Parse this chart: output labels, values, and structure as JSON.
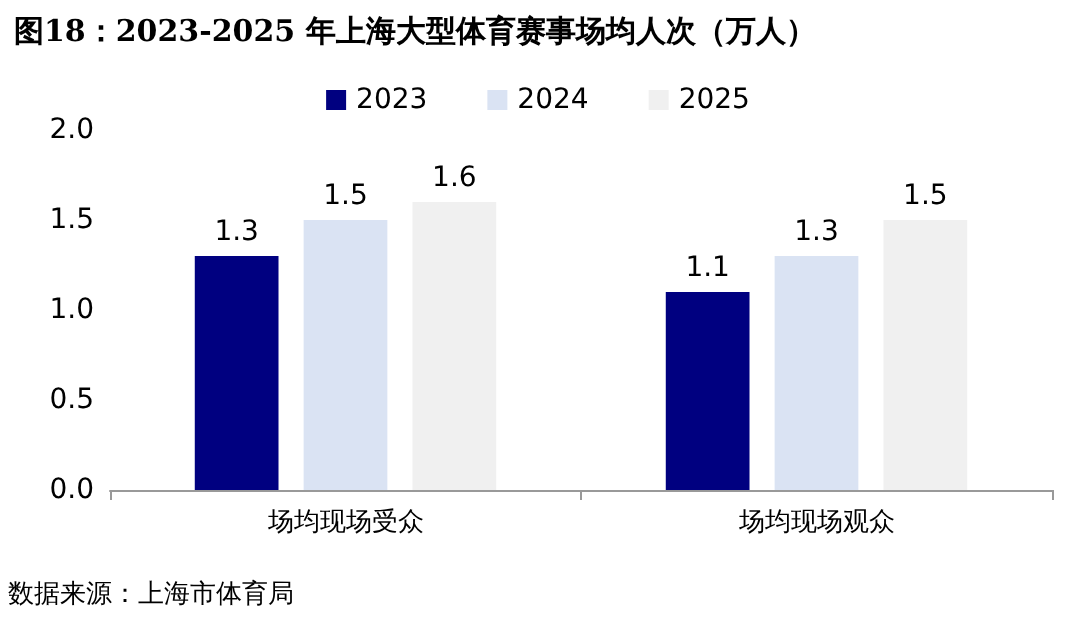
{
  "chart_data": {
    "type": "bar",
    "title": "图18：2023-2025 年上海大型体育赛事场均人次（万人）",
    "categories": [
      "场均现场受众",
      "场均现场观众"
    ],
    "series": [
      {
        "name": "2023",
        "color": "#000080",
        "values": [
          1.3,
          1.1
        ]
      },
      {
        "name": "2024",
        "color": "#dae3f3",
        "values": [
          1.5,
          1.3
        ]
      },
      {
        "name": "2025",
        "color": "#f0f0f0",
        "values": [
          1.6,
          1.5
        ]
      }
    ],
    "ylim": [
      0,
      2
    ],
    "yticks": [
      {
        "value": 0,
        "label": "0.0"
      },
      {
        "value": 0.5,
        "label": "0.5"
      },
      {
        "value": 1,
        "label": "1.0"
      },
      {
        "value": 1.5,
        "label": "1.5"
      },
      {
        "value": 2,
        "label": "2.0"
      }
    ],
    "data_labels": true,
    "grid": false,
    "legend": "top",
    "annotations": [
      "数据来源：上海市体育局"
    ]
  }
}
